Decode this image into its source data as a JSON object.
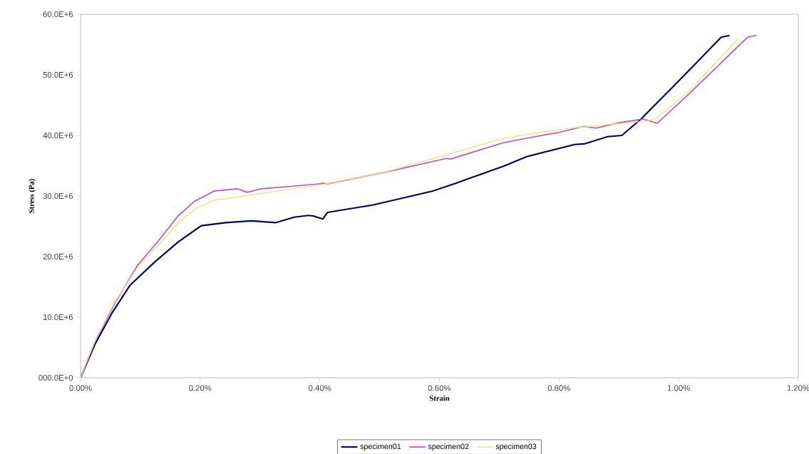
{
  "chart_data": {
    "type": "line",
    "xlabel": "Strain",
    "ylabel": "Stress (Pa)",
    "xlim": [
      0,
      1.2
    ],
    "ylim": [
      0,
      60000000
    ],
    "xticks": [
      {
        "value": 0,
        "label": "0.00%"
      },
      {
        "value": 0.2,
        "label": "0.20%"
      },
      {
        "value": 0.4,
        "label": "0.40%"
      },
      {
        "value": 0.6,
        "label": "0.60%"
      },
      {
        "value": 0.8,
        "label": "0.80%"
      },
      {
        "value": 1.0,
        "label": "1.00%"
      },
      {
        "value": 1.2,
        "label": "1.20%"
      }
    ],
    "yticks": [
      {
        "value": 0,
        "label": "000.0E+0"
      },
      {
        "value": 10000000,
        "label": "10.0E+6"
      },
      {
        "value": 20000000,
        "label": "20.0E+6"
      },
      {
        "value": 30000000,
        "label": "30.0E+6"
      },
      {
        "value": 40000000,
        "label": "40.0E+6"
      },
      {
        "value": 50000000,
        "label": "50.0E+6"
      },
      {
        "value": 60000000,
        "label": "60.0E+6"
      }
    ],
    "legend": "bottom",
    "grid": false,
    "marker": "none",
    "line_style": "solid",
    "series": [
      {
        "name": "specimen01",
        "color": "#000060",
        "x": [
          0,
          0.024,
          0.052,
          0.083,
          0.124,
          0.163,
          0.202,
          0.243,
          0.286,
          0.326,
          0.357,
          0.381,
          0.389,
          0.405,
          0.413,
          0.488,
          0.588,
          0.627,
          0.707,
          0.746,
          0.826,
          0.842,
          0.881,
          0.905,
          0.937,
          0.981,
          1.024,
          1.071,
          1.085
        ],
        "values": [
          0,
          5500000.0,
          10600000.0,
          15300000.0,
          19100000.0,
          22400000.0,
          25100000.0,
          25600000.0,
          25900000.0,
          25600000.0,
          26500000.0,
          26800000.0,
          26700000.0,
          26200000.0,
          27300000.0,
          28500000.0,
          30800000.0,
          32100000.0,
          34900000.0,
          36500000.0,
          38500000.0,
          38600000.0,
          39800000.0,
          40000000.0,
          42700000.0,
          47100000.0,
          51400000.0,
          56200000.0,
          56500000.0
        ]
      },
      {
        "name": "specimen02",
        "color": "#c050c0",
        "x": [
          0,
          0.024,
          0.056,
          0.095,
          0.131,
          0.163,
          0.19,
          0.223,
          0.262,
          0.279,
          0.302,
          0.342,
          0.398,
          0.405,
          0.413,
          0.508,
          0.612,
          0.619,
          0.707,
          0.76,
          0.8,
          0.842,
          0.862,
          0.901,
          0.94,
          0.964,
          1.02,
          1.115,
          1.13
        ],
        "values": [
          0,
          5900000.0,
          12100000.0,
          18500000.0,
          22700000.0,
          26700000.0,
          29100000.0,
          30800000.0,
          31200000.0,
          30600000.0,
          31200000.0,
          31500000.0,
          32000000.0,
          32100000.0,
          32000000.0,
          33900000.0,
          36200000.0,
          36100000.0,
          38800000.0,
          39800000.0,
          40500000.0,
          41500000.0,
          41200000.0,
          42100000.0,
          42700000.0,
          42000000.0,
          47100000.0,
          56200000.0,
          56500000.0
        ]
      },
      {
        "name": "specimen03",
        "color": "#ece070",
        "x": [
          0,
          0.024,
          0.056,
          0.095,
          0.131,
          0.163,
          0.19,
          0.223,
          0.262,
          0.302,
          0.342,
          0.4,
          0.508,
          0.612,
          0.707,
          0.8,
          0.862,
          0.94,
          0.96,
          1.02,
          1.1
        ],
        "values": [
          0,
          6000000.0,
          12300000.0,
          18200000.0,
          22000000.0,
          25500000.0,
          27800000.0,
          29300000.0,
          29800000.0,
          30400000.0,
          31000000.0,
          31800000.0,
          33900000.0,
          36800000.0,
          39500000.0,
          41000000.0,
          41600000.0,
          42300000.0,
          42600000.0,
          47500000.0,
          56000000.0
        ]
      }
    ]
  }
}
